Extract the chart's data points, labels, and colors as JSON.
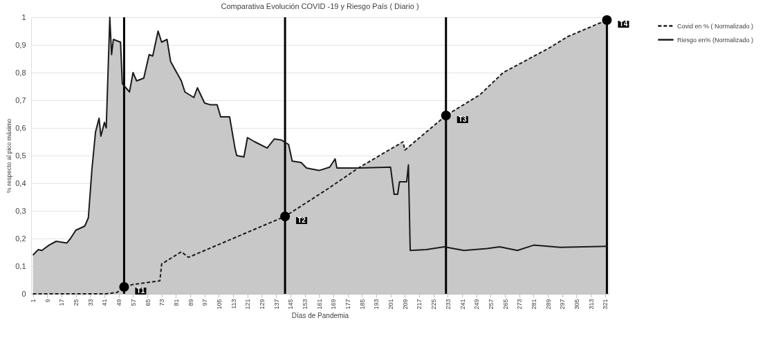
{
  "chart_data": {
    "type": "line",
    "title": "Comparativa Evolución COVID -19 y Riesgo País ( Diario )",
    "xlabel": "Días de Pandemia",
    "ylabel": "% respecto al pico máximo",
    "xlim": [
      0,
      323
    ],
    "xticks": [
      1,
      9,
      17,
      25,
      33,
      41,
      49,
      57,
      65,
      73,
      81,
      89,
      97,
      105,
      113,
      121,
      129,
      137,
      145,
      153,
      161,
      169,
      177,
      185,
      193,
      201,
      209,
      217,
      225,
      233,
      241,
      249,
      257,
      265,
      273,
      281,
      289,
      297,
      305,
      313,
      321
    ],
    "ylim": [
      0,
      1
    ],
    "yticks": [
      0,
      {
        "value": 0.1,
        "label": "0,1"
      },
      {
        "value": 0.2,
        "label": "0,2"
      },
      {
        "value": 0.3,
        "label": "0,3"
      },
      {
        "value": 0.4,
        "label": "0,4"
      },
      {
        "value": 0.5,
        "label": "0,5"
      },
      {
        "value": 0.6,
        "label": "0,6"
      },
      {
        "value": 0.7,
        "label": "0,7"
      },
      {
        "value": 0.8,
        "label": "0,8"
      },
      {
        "value": 0.9,
        "label": "0,9"
      },
      1
    ],
    "grid": "y",
    "legend": "right",
    "series": [
      {
        "type": "area",
        "color": "#c8c8c8",
        "x": [
          1,
          4,
          6,
          10,
          14,
          20,
          22,
          25,
          30,
          32,
          34,
          36,
          38,
          39,
          41,
          42,
          44,
          45,
          46,
          50,
          51,
          55,
          57,
          59,
          63,
          66,
          68,
          71,
          73,
          76,
          78,
          84,
          86,
          91,
          93,
          97,
          100,
          104,
          106,
          111,
          114,
          115,
          119,
          121,
          125,
          132,
          136,
          140,
          144,
          146,
          151,
          154,
          161,
          167,
          170,
          171,
          183,
          208,
          209,
          232,
          251,
          264,
          290,
          300,
          322
        ],
        "values": [
          0.14,
          0.16,
          0.157,
          0.176,
          0.19,
          0.184,
          0.2,
          0.23,
          0.245,
          0.275,
          0.45,
          0.585,
          0.635,
          0.57,
          0.62,
          0.6,
          1.0,
          0.865,
          0.92,
          0.91,
          0.76,
          0.73,
          0.8,
          0.77,
          0.78,
          0.865,
          0.86,
          0.95,
          0.91,
          0.92,
          0.84,
          0.77,
          0.73,
          0.71,
          0.745,
          0.69,
          0.684,
          0.684,
          0.64,
          0.64,
          0.527,
          0.5,
          0.495,
          0.565,
          0.55,
          0.527,
          0.56,
          0.556,
          0.54,
          0.48,
          0.475,
          0.455,
          0.446,
          0.458,
          0.488,
          0.455,
          0.455,
          0.55,
          0.52,
          0.645,
          0.72,
          0.8,
          0.89,
          0.93,
          0.99
        ]
      },
      {
        "name": "Covid en % ( Normalizado )",
        "color": "#1a1a1a",
        "line_style": "dashed",
        "x": [
          1,
          42,
          48,
          52,
          57,
          72,
          73,
          84,
          88,
          142,
          166,
          183,
          208,
          209,
          232,
          251,
          264,
          290,
          300,
          322
        ],
        "values": [
          0,
          0,
          0.005,
          0.025,
          0.034,
          0.047,
          0.108,
          0.152,
          0.132,
          0.28,
          0.38,
          0.455,
          0.55,
          0.52,
          0.645,
          0.72,
          0.8,
          0.89,
          0.93,
          0.99
        ]
      },
      {
        "name": "Riesgo en% (Normalizado )",
        "color": "#1a1a1a",
        "line_style": "solid",
        "x": [
          1,
          4,
          6,
          10,
          14,
          20,
          22,
          25,
          30,
          32,
          34,
          36,
          38,
          39,
          41,
          42,
          44,
          45,
          46,
          50,
          51,
          55,
          57,
          59,
          63,
          66,
          68,
          71,
          73,
          76,
          78,
          84,
          86,
          91,
          93,
          97,
          100,
          104,
          106,
          111,
          114,
          115,
          119,
          121,
          125,
          132,
          136,
          140,
          144,
          146,
          151,
          154,
          161,
          167,
          170,
          171,
          183,
          201,
          203,
          205,
          206,
          210,
          211,
          212,
          221,
          231,
          242,
          255,
          262,
          272,
          281,
          296,
          322
        ],
        "values": [
          0.14,
          0.16,
          0.157,
          0.176,
          0.19,
          0.184,
          0.2,
          0.23,
          0.245,
          0.275,
          0.45,
          0.585,
          0.635,
          0.57,
          0.62,
          0.6,
          1.0,
          0.865,
          0.92,
          0.91,
          0.76,
          0.73,
          0.8,
          0.77,
          0.78,
          0.865,
          0.86,
          0.95,
          0.91,
          0.92,
          0.84,
          0.77,
          0.73,
          0.71,
          0.745,
          0.69,
          0.684,
          0.684,
          0.64,
          0.64,
          0.527,
          0.5,
          0.495,
          0.565,
          0.55,
          0.527,
          0.56,
          0.556,
          0.54,
          0.48,
          0.475,
          0.455,
          0.446,
          0.458,
          0.488,
          0.455,
          0.455,
          0.458,
          0.36,
          0.36,
          0.405,
          0.405,
          0.466,
          0.157,
          0.16,
          0.17,
          0.157,
          0.164,
          0.17,
          0.157,
          0.176,
          0.168,
          0.172
        ]
      },
      {
        "type": "scatter",
        "color": "#000000",
        "marker": "circle",
        "x": [
          52,
          142,
          232,
          322
        ],
        "values": [
          0.025,
          0.28,
          0.645,
          0.99
        ]
      }
    ],
    "ref_lines": [
      {
        "axis": "x",
        "value": 52,
        "label": "T1",
        "color": "#000000"
      },
      {
        "axis": "x",
        "value": 142,
        "label": "T2",
        "color": "#000000"
      },
      {
        "axis": "x",
        "value": 232,
        "label": "T3",
        "color": "#000000"
      },
      {
        "axis": "x",
        "value": 322,
        "label": "T4",
        "color": "#000000"
      }
    ]
  }
}
